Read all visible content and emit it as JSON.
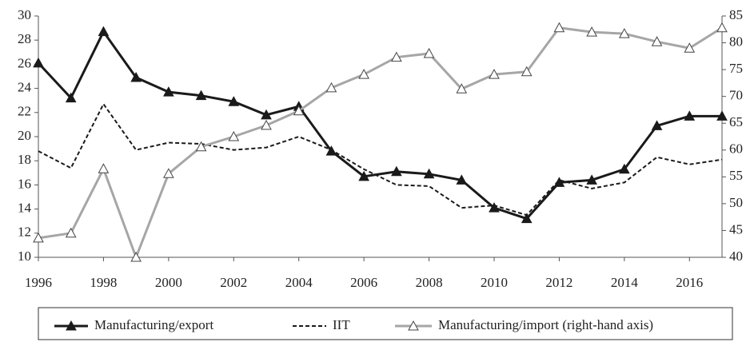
{
  "chart_data": {
    "type": "line",
    "x": [
      1996,
      1997,
      1998,
      1999,
      2000,
      2001,
      2002,
      2003,
      2004,
      2005,
      2006,
      2007,
      2008,
      2009,
      2010,
      2011,
      2012,
      2013,
      2014,
      2015,
      2016,
      2017
    ],
    "xlim": [
      1996,
      2017
    ],
    "xticks": [
      1996,
      1998,
      2000,
      2002,
      2004,
      2006,
      2008,
      2010,
      2012,
      2014,
      2016
    ],
    "ylim": [
      10,
      30
    ],
    "yticks": [
      10,
      12,
      14,
      16,
      18,
      20,
      22,
      24,
      26,
      28,
      30
    ],
    "y2lim": [
      40,
      85
    ],
    "y2ticks": [
      40,
      45,
      50,
      55,
      60,
      65,
      70,
      75,
      80,
      85
    ],
    "grid": false,
    "legend": "bottom",
    "series": [
      {
        "name": "Manufacturing/export",
        "color": "#1a1a1a",
        "dash": "solid",
        "marker": "triangle",
        "marker_fill": "#1a1a1a",
        "values": [
          26.1,
          23.2,
          28.7,
          24.9,
          23.7,
          23.4,
          22.9,
          21.8,
          22.5,
          18.8,
          16.7,
          17.1,
          16.9,
          16.4,
          14.1,
          13.2,
          16.2,
          16.4,
          17.3,
          20.9,
          21.7,
          21.7
        ]
      },
      {
        "name": "IIT",
        "color": "#1a1a1a",
        "dash": "dashed",
        "marker": "none",
        "marker_fill": "none",
        "values": [
          18.8,
          17.4,
          22.7,
          18.9,
          19.5,
          19.4,
          18.9,
          19.1,
          20.0,
          18.9,
          17.3,
          16.0,
          15.9,
          14.1,
          14.3,
          13.5,
          16.4,
          15.7,
          16.2,
          18.3,
          17.7,
          18.1
        ]
      },
      {
        "name": "Manufacturing/import (right-hand axis)",
        "color": "#a6a6a6",
        "dash": "solid",
        "marker": "triangle",
        "marker_fill": "#ffffff",
        "axis": "y2",
        "values": [
          43.6,
          44.5,
          56.5,
          40.0,
          55.6,
          60.6,
          62.5,
          64.6,
          67.3,
          71.6,
          74.1,
          77.3,
          78.0,
          71.4,
          74.1,
          74.6,
          82.8,
          82.0,
          81.7,
          80.2,
          79.0,
          82.8
        ]
      }
    ]
  }
}
